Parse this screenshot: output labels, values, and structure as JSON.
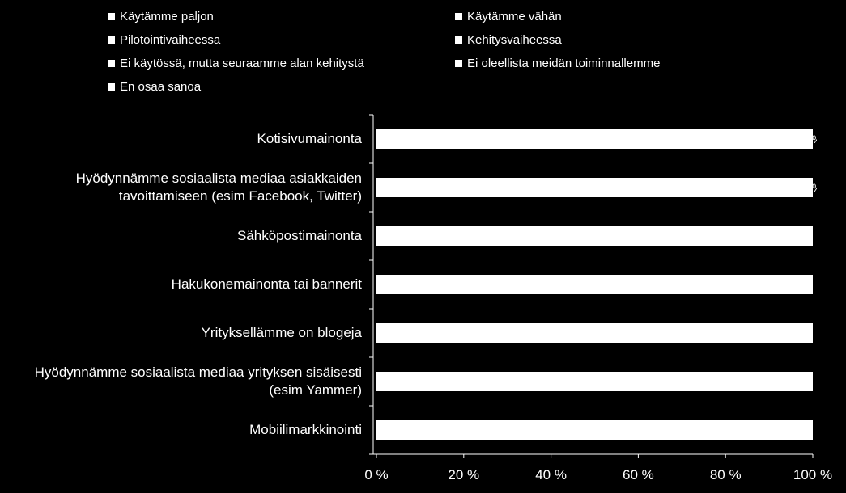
{
  "chart_data": {
    "type": "bar",
    "orientation": "horizontal",
    "stacked": "percent",
    "legend_position": "top",
    "categories": [
      "Kotisivumainonta",
      "Hyödynnämme sosiaalista mediaa asiakkaiden tavoittamiseen (esim Facebook, Twitter)",
      "Sähköpostimainonta",
      "Hakukonemainonta tai bannerit",
      "Yrityksellämme on blogeja",
      "Hyödynnämme sosiaalista mediaa yrityksen sisäisesti (esim Yammer)",
      "Mobiilimarkkinointi"
    ],
    "category_lines": [
      [
        "Kotisivumainonta"
      ],
      [
        "Hyödynnämme sosiaalista mediaa asiakkaiden",
        "tavoittamiseen (esim Facebook, Twitter)"
      ],
      [
        "Sähköpostimainonta"
      ],
      [
        "Hakukonemainonta tai bannerit"
      ],
      [
        "Yrityksellämme on blogeja"
      ],
      [
        "Hyödynnämme sosiaalista mediaa yrityksen sisäisesti",
        "(esim Yammer)"
      ],
      [
        "Mobiilimarkkinointi"
      ]
    ],
    "series": [
      {
        "name": "Käytämme paljon",
        "color": "#ffffff",
        "values": [
          null,
          null,
          null,
          null,
          null,
          null,
          null
        ]
      },
      {
        "name": "Käytämme vähän",
        "color": "#ffffff",
        "values": [
          null,
          null,
          null,
          null,
          null,
          null,
          null
        ]
      },
      {
        "name": "Pilotointivaiheessa",
        "color": "#ffffff",
        "values": [
          null,
          null,
          null,
          null,
          null,
          null,
          null
        ]
      },
      {
        "name": "Kehitysvaiheessa",
        "color": "#ffffff",
        "values": [
          null,
          null,
          null,
          null,
          null,
          null,
          null
        ]
      },
      {
        "name": "Ei käytössä, mutta seuraamme alan kehitystä",
        "color": "#ffffff",
        "values": [
          null,
          null,
          null,
          null,
          null,
          null,
          null
        ]
      },
      {
        "name": "Ei oleellista meidän toiminnallemme",
        "color": "#ffffff",
        "values": [
          null,
          null,
          null,
          null,
          null,
          null,
          null
        ]
      },
      {
        "name": "En osaa sanoa",
        "color": "#ffffff",
        "values": [
          null,
          null,
          null,
          null,
          null,
          null,
          null
        ]
      }
    ],
    "totals": [
      100,
      100,
      100,
      100,
      100,
      100,
      100
    ],
    "xlim": [
      0,
      100
    ],
    "xticks": [
      0,
      20,
      40,
      60,
      80,
      100
    ],
    "xtick_labels": [
      "0 %",
      "20 %",
      "40 %",
      "60 %",
      "80 %",
      "100 %"
    ],
    "clipped_labels": [
      "%",
      "%"
    ],
    "grid": false
  }
}
